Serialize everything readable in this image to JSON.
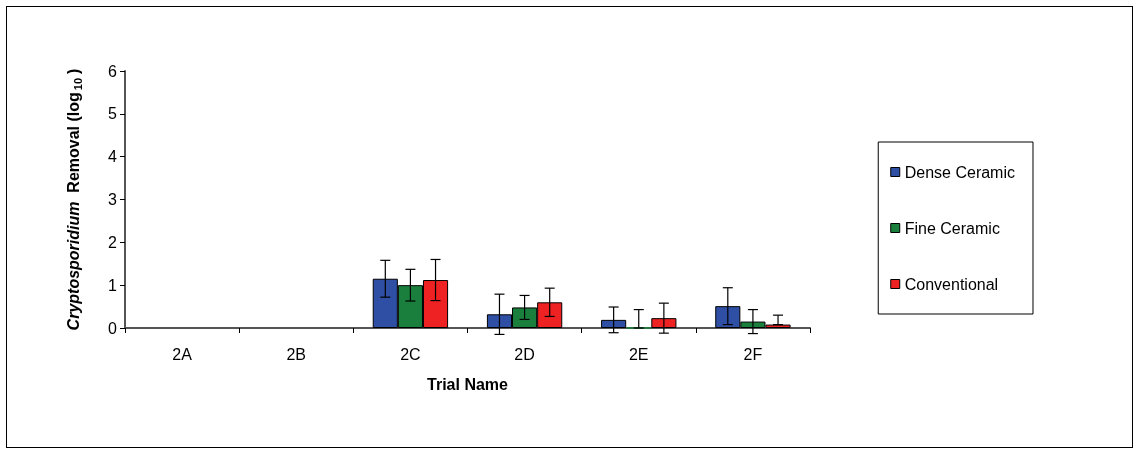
{
  "chart_data": {
    "type": "bar",
    "xlabel": "Trial Name",
    "ylabel": "Cryptosporidium  Removal (log$_{10}$)",
    "categories": [
      "2A",
      "2B",
      "2C",
      "2D",
      "2E",
      "2F"
    ],
    "series": [
      {
        "name": "Dense Ceramic",
        "color": "#2e4fa3",
        "values": [
          null,
          null,
          1.15,
          0.32,
          0.19,
          0.51
        ],
        "errors": [
          null,
          null,
          0.43,
          0.47,
          0.3,
          0.43
        ]
      },
      {
        "name": "Fine Ceramic",
        "color": "#1a7f3c",
        "values": [
          null,
          null,
          1.0,
          0.48,
          0,
          0.15
        ],
        "errors": [
          null,
          null,
          0.37,
          0.28,
          [
            0,
            0.43
          ],
          0.28
        ]
      },
      {
        "name": "Conventional",
        "color": "#ee2222",
        "values": [
          null,
          null,
          1.12,
          0.6,
          0.23,
          0.08
        ],
        "errors": [
          null,
          null,
          0.48,
          0.33,
          0.35,
          [
            0.08,
            0.3
          ]
        ]
      }
    ],
    "ylim": [
      0,
      6
    ],
    "yticks": [
      0,
      1,
      2,
      3,
      4,
      5,
      6
    ],
    "grid": false,
    "legend": "right"
  }
}
